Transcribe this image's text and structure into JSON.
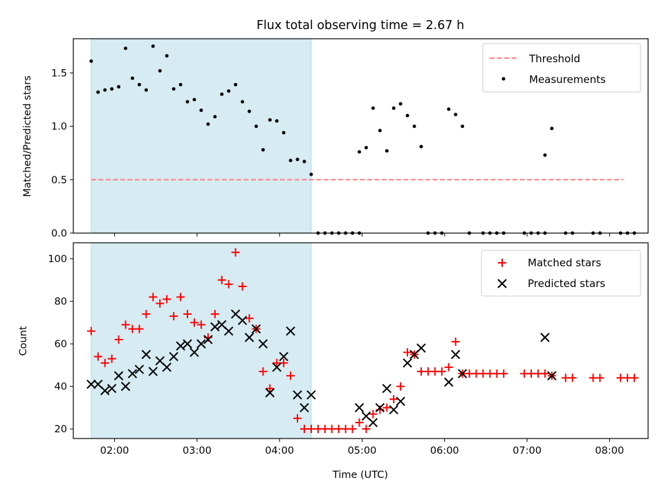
{
  "chart_data": {
    "type": "scatter",
    "title": "Flux total observing time = 2.67 h",
    "xlabel": "Time (UTC)",
    "x_ticks": [
      "02:00",
      "03:00",
      "04:00",
      "05:00",
      "06:00",
      "07:00",
      "08:00"
    ],
    "xlim": [
      "01:30",
      "08:28"
    ],
    "shaded_interval": [
      "01:43",
      "04:23"
    ],
    "colors": {
      "shade": "#add8e6",
      "threshold": "#ff7f7f",
      "matched": "#ff0000",
      "predicted": "#000000"
    },
    "panels": [
      {
        "id": "ratio",
        "ylabel": "Matched/Predicted stars",
        "ylim": [
          0,
          1.82
        ],
        "y_ticks": [
          "0.0",
          "0.5",
          "1.0",
          "1.5"
        ],
        "legend_position": "upper right",
        "threshold": {
          "name": "Threshold",
          "value": 0.5,
          "x_range": [
            "01:43",
            "08:10"
          ]
        },
        "series": [
          {
            "name": "Measurements",
            "marker": "dot",
            "points": [
              [
                "01:43",
                1.61
              ],
              [
                "01:48",
                1.32
              ],
              [
                "01:53",
                1.34
              ],
              [
                "01:58",
                1.35
              ],
              [
                "02:03",
                1.37
              ],
              [
                "02:08",
                1.73
              ],
              [
                "02:13",
                1.45
              ],
              [
                "02:18",
                1.39
              ],
              [
                "02:23",
                1.34
              ],
              [
                "02:28",
                1.75
              ],
              [
                "02:33",
                1.52
              ],
              [
                "02:38",
                1.66
              ],
              [
                "02:43",
                1.35
              ],
              [
                "02:48",
                1.39
              ],
              [
                "02:53",
                1.23
              ],
              [
                "02:58",
                1.25
              ],
              [
                "03:03",
                1.15
              ],
              [
                "03:08",
                1.02
              ],
              [
                "03:13",
                1.09
              ],
              [
                "03:18",
                1.3
              ],
              [
                "03:23",
                1.33
              ],
              [
                "03:28",
                1.39
              ],
              [
                "03:33",
                1.23
              ],
              [
                "03:38",
                1.14
              ],
              [
                "03:43",
                1.0
              ],
              [
                "03:48",
                0.78
              ],
              [
                "03:53",
                1.06
              ],
              [
                "03:58",
                1.05
              ],
              [
                "04:03",
                0.94
              ],
              [
                "04:08",
                0.68
              ],
              [
                "04:13",
                0.69
              ],
              [
                "04:18",
                0.67
              ],
              [
                "04:23",
                0.55
              ],
              [
                "04:28",
                0.0
              ],
              [
                "04:33",
                0.0
              ],
              [
                "04:38",
                0.0
              ],
              [
                "04:43",
                0.0
              ],
              [
                "04:48",
                0.0
              ],
              [
                "04:53",
                0.0
              ],
              [
                "04:58",
                0.0
              ],
              [
                "04:58",
                0.76
              ],
              [
                "05:03",
                0.8
              ],
              [
                "05:08",
                1.17
              ],
              [
                "05:13",
                0.96
              ],
              [
                "05:18",
                0.77
              ],
              [
                "05:23",
                1.17
              ],
              [
                "05:28",
                1.21
              ],
              [
                "05:33",
                1.1
              ],
              [
                "05:38",
                1.0
              ],
              [
                "05:43",
                0.81
              ],
              [
                "05:48",
                0.0
              ],
              [
                "05:53",
                0.0
              ],
              [
                "05:58",
                0.0
              ],
              [
                "06:03",
                1.16
              ],
              [
                "06:08",
                1.11
              ],
              [
                "06:13",
                1.0
              ],
              [
                "06:18",
                0.0
              ],
              [
                "06:28",
                0.0
              ],
              [
                "06:33",
                0.0
              ],
              [
                "06:38",
                0.0
              ],
              [
                "06:43",
                0.0
              ],
              [
                "06:58",
                0.0
              ],
              [
                "07:03",
                0.0
              ],
              [
                "07:08",
                0.0
              ],
              [
                "07:13",
                0.0
              ],
              [
                "07:13",
                0.73
              ],
              [
                "07:18",
                0.98
              ],
              [
                "07:28",
                0.0
              ],
              [
                "07:33",
                0.0
              ],
              [
                "07:48",
                0.0
              ],
              [
                "07:53",
                0.0
              ],
              [
                "08:08",
                0.0
              ],
              [
                "08:13",
                0.0
              ],
              [
                "08:18",
                0.0
              ]
            ]
          }
        ]
      },
      {
        "id": "count",
        "ylabel": "Count",
        "ylim": [
          15.5,
          107.5
        ],
        "y_ticks": [
          "20",
          "40",
          "60",
          "80",
          "100"
        ],
        "legend_position": "upper right",
        "series": [
          {
            "name": "Matched stars",
            "marker": "plus",
            "points": [
              [
                "01:43",
                66
              ],
              [
                "01:48",
                54
              ],
              [
                "01:53",
                51
              ],
              [
                "01:58",
                53
              ],
              [
                "02:03",
                62
              ],
              [
                "02:08",
                69
              ],
              [
                "02:13",
                67
              ],
              [
                "02:18",
                67
              ],
              [
                "02:23",
                74
              ],
              [
                "02:28",
                82
              ],
              [
                "02:33",
                79
              ],
              [
                "02:38",
                81
              ],
              [
                "02:43",
                73
              ],
              [
                "02:48",
                82
              ],
              [
                "02:53",
                74
              ],
              [
                "02:58",
                70
              ],
              [
                "03:03",
                69
              ],
              [
                "03:08",
                63
              ],
              [
                "03:13",
                74
              ],
              [
                "03:18",
                90
              ],
              [
                "03:23",
                88
              ],
              [
                "03:28",
                103
              ],
              [
                "03:33",
                87
              ],
              [
                "03:38",
                72
              ],
              [
                "03:43",
                67
              ],
              [
                "03:48",
                47
              ],
              [
                "03:53",
                39
              ],
              [
                "03:58",
                51
              ],
              [
                "04:03",
                51
              ],
              [
                "04:08",
                45
              ],
              [
                "04:13",
                25
              ],
              [
                "04:18",
                20
              ],
              [
                "04:23",
                20
              ],
              [
                "04:28",
                20
              ],
              [
                "04:33",
                20
              ],
              [
                "04:38",
                20
              ],
              [
                "04:43",
                20
              ],
              [
                "04:48",
                20
              ],
              [
                "04:53",
                20
              ],
              [
                "04:58",
                23
              ],
              [
                "05:03",
                20
              ],
              [
                "05:08",
                27
              ],
              [
                "05:13",
                29
              ],
              [
                "05:18",
                30
              ],
              [
                "05:23",
                34
              ],
              [
                "05:28",
                40
              ],
              [
                "05:33",
                56
              ],
              [
                "05:38",
                55
              ],
              [
                "05:43",
                47
              ],
              [
                "05:48",
                47
              ],
              [
                "05:53",
                47
              ],
              [
                "05:58",
                47
              ],
              [
                "06:03",
                49
              ],
              [
                "06:08",
                61
              ],
              [
                "06:13",
                46
              ],
              [
                "06:18",
                46
              ],
              [
                "06:23",
                46
              ],
              [
                "06:28",
                46
              ],
              [
                "06:33",
                46
              ],
              [
                "06:38",
                46
              ],
              [
                "06:43",
                46
              ],
              [
                "06:58",
                46
              ],
              [
                "07:03",
                46
              ],
              [
                "07:08",
                46
              ],
              [
                "07:13",
                46
              ],
              [
                "07:18",
                45
              ],
              [
                "07:28",
                44
              ],
              [
                "07:33",
                44
              ],
              [
                "07:48",
                44
              ],
              [
                "07:53",
                44
              ],
              [
                "08:08",
                44
              ],
              [
                "08:13",
                44
              ],
              [
                "08:18",
                44
              ]
            ]
          },
          {
            "name": "Predicted stars",
            "marker": "x",
            "points": [
              [
                "01:43",
                41
              ],
              [
                "01:48",
                41
              ],
              [
                "01:53",
                38
              ],
              [
                "01:58",
                39
              ],
              [
                "02:03",
                45
              ],
              [
                "02:08",
                40
              ],
              [
                "02:13",
                46
              ],
              [
                "02:18",
                48
              ],
              [
                "02:23",
                55
              ],
              [
                "02:28",
                47
              ],
              [
                "02:33",
                52
              ],
              [
                "02:38",
                49
              ],
              [
                "02:43",
                54
              ],
              [
                "02:48",
                59
              ],
              [
                "02:53",
                60
              ],
              [
                "02:58",
                56
              ],
              [
                "03:03",
                60
              ],
              [
                "03:08",
                62
              ],
              [
                "03:13",
                68
              ],
              [
                "03:18",
                69
              ],
              [
                "03:23",
                66
              ],
              [
                "03:28",
                74
              ],
              [
                "03:33",
                71
              ],
              [
                "03:38",
                63
              ],
              [
                "03:43",
                67
              ],
              [
                "03:48",
                60
              ],
              [
                "03:53",
                37
              ],
              [
                "03:58",
                49
              ],
              [
                "04:03",
                54
              ],
              [
                "04:08",
                66
              ],
              [
                "04:13",
                36
              ],
              [
                "04:18",
                30
              ],
              [
                "04:23",
                36
              ],
              [
                "04:58",
                30
              ],
              [
                "05:03",
                26
              ],
              [
                "05:08",
                23
              ],
              [
                "05:13",
                30
              ],
              [
                "05:18",
                39
              ],
              [
                "05:23",
                29
              ],
              [
                "05:28",
                33
              ],
              [
                "05:33",
                51
              ],
              [
                "05:38",
                55
              ],
              [
                "05:43",
                58
              ],
              [
                "06:03",
                42
              ],
              [
                "06:08",
                55
              ],
              [
                "06:13",
                46
              ],
              [
                "07:13",
                63
              ],
              [
                "07:18",
                45
              ]
            ]
          }
        ]
      }
    ]
  }
}
